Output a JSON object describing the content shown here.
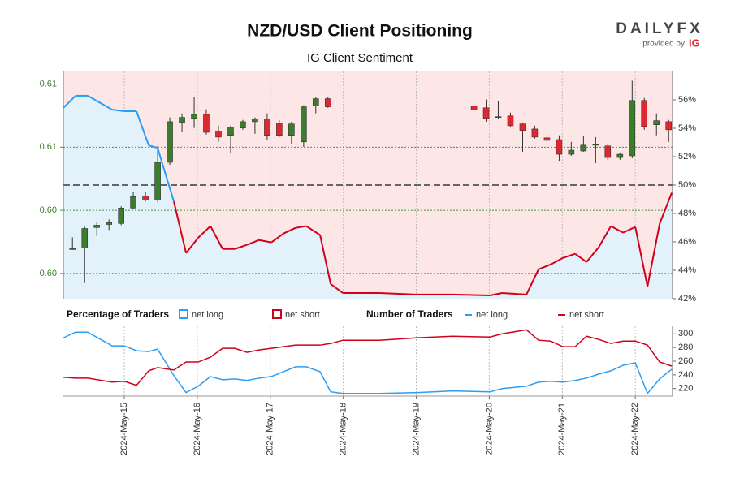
{
  "header": {
    "title": "NZD/USD Client Positioning",
    "subtitle": "IG Client Sentiment",
    "logo": "DAILYFX",
    "provided_by": "provided by",
    "provider": "IG"
  },
  "chart_data": [
    {
      "type": "candlestick",
      "up_color": "#3a7d2c",
      "down_color": "#e0262f",
      "x": [
        14.29,
        14.457,
        14.623,
        14.79,
        14.957,
        15.123,
        15.29,
        15.457,
        15.623,
        15.79,
        15.957,
        16.123,
        16.29,
        16.457,
        16.623,
        16.79,
        16.957,
        17.123,
        17.29,
        17.457,
        17.623,
        17.79,
        19.79,
        19.957,
        20.123,
        20.29,
        20.457,
        20.623,
        20.79,
        20.957,
        21.123,
        21.29,
        21.457,
        21.623,
        21.79,
        21.957,
        22.123,
        22.29,
        22.457
      ],
      "open": [
        0.60348,
        0.60351,
        0.60432,
        0.60444,
        0.60448,
        0.60509,
        0.60557,
        0.60541,
        0.6069,
        0.60848,
        0.60864,
        0.6088,
        0.60813,
        0.60797,
        0.60826,
        0.60851,
        0.60861,
        0.60845,
        0.60797,
        0.60771,
        0.60913,
        0.60942,
        0.60913,
        0.60906,
        0.60871,
        0.60874,
        0.60842,
        0.60822,
        0.60787,
        0.6078,
        0.60722,
        0.60735,
        0.60761,
        0.60755,
        0.60709,
        0.60716,
        0.60935,
        0.60839,
        0.60851
      ],
      "high": [
        0.60393,
        0.60435,
        0.60454,
        0.60464,
        0.60516,
        0.60574,
        0.60574,
        0.60755,
        0.60868,
        0.60884,
        0.60948,
        0.609,
        0.60835,
        0.60835,
        0.60858,
        0.60868,
        0.60884,
        0.60858,
        0.60851,
        0.60916,
        0.60948,
        0.60948,
        0.60926,
        0.60939,
        0.60932,
        0.60887,
        0.60848,
        0.60835,
        0.60793,
        0.60797,
        0.60771,
        0.60793,
        0.6079,
        0.60761,
        0.60729,
        0.61013,
        0.60945,
        0.60884,
        0.60858
      ],
      "low": [
        0.60344,
        0.60212,
        0.60399,
        0.60422,
        0.60441,
        0.60506,
        0.60535,
        0.60532,
        0.6068,
        0.60809,
        0.60826,
        0.608,
        0.60771,
        0.60725,
        0.60819,
        0.60803,
        0.60777,
        0.6079,
        0.60764,
        0.60751,
        0.60884,
        0.60906,
        0.60884,
        0.60851,
        0.60861,
        0.60829,
        0.60732,
        0.60784,
        0.60771,
        0.60696,
        0.60716,
        0.60732,
        0.60687,
        0.607,
        0.607,
        0.60706,
        0.60819,
        0.60797,
        0.60771
      ],
      "close": [
        0.60348,
        0.60428,
        0.60441,
        0.60451,
        0.60509,
        0.60554,
        0.60541,
        0.6069,
        0.60851,
        0.60868,
        0.6088,
        0.60809,
        0.6079,
        0.60829,
        0.60851,
        0.60861,
        0.60797,
        0.60797,
        0.60842,
        0.6091,
        0.60942,
        0.6091,
        0.60897,
        0.60864,
        0.60871,
        0.60835,
        0.60816,
        0.6079,
        0.60777,
        0.60722,
        0.60738,
        0.60758,
        0.60761,
        0.60709,
        0.60722,
        0.60935,
        0.60832,
        0.60855,
        0.60819
      ],
      "ylim": [
        0.6015,
        0.6105
      ],
      "yticks": [
        {
          "value": 0.61,
          "label": "0.61"
        },
        {
          "value": 0.6075,
          "label": "0.61"
        },
        {
          "value": 0.605,
          "label": "0.60"
        },
        {
          "value": 0.6025,
          "label": "0.60"
        }
      ],
      "grid": true
    },
    {
      "type": "sentiment",
      "legend_title": "Percentage of Traders",
      "legend": [
        {
          "name": "net long",
          "color": "#2a9df4"
        },
        {
          "name": "net short",
          "color": "#d0021b"
        }
      ],
      "x": [
        14.165,
        14.332,
        14.499,
        14.833,
        15.0,
        15.167,
        15.334,
        15.456,
        15.679,
        15.846,
        16.013,
        16.18,
        16.347,
        16.513,
        16.68,
        16.847,
        17.014,
        17.181,
        17.348,
        17.493,
        17.682,
        17.827,
        17.994,
        18.494,
        18.995,
        19.496,
        20.008,
        20.175,
        20.509,
        20.675,
        20.842,
        21.009,
        21.176,
        21.332,
        21.499,
        21.666,
        21.833,
        22.0,
        22.167,
        22.334,
        22.5
      ],
      "values": [
        55.43,
        56.29,
        56.29,
        55.31,
        55.2,
        55.2,
        52.79,
        52.62,
        48.83,
        45.21,
        46.3,
        47.11,
        45.5,
        45.5,
        45.79,
        46.13,
        45.96,
        46.59,
        46.99,
        47.11,
        46.48,
        43.03,
        42.4,
        42.4,
        42.29,
        42.29,
        42.23,
        42.4,
        42.29,
        44.07,
        44.41,
        44.87,
        45.16,
        44.58,
        45.62,
        47.11,
        46.65,
        47.05,
        42.86,
        47.28,
        49.46
      ],
      "axis": "y2",
      "reference_line": 50,
      "y2lim": [
        42,
        58
      ],
      "y2ticks": [
        {
          "value": 42,
          "label": "42%"
        },
        {
          "value": 44,
          "label": "44%"
        },
        {
          "value": 46,
          "label": "46%"
        },
        {
          "value": 48,
          "label": "48%"
        },
        {
          "value": 50,
          "label": "50%"
        },
        {
          "value": 52,
          "label": "52%"
        },
        {
          "value": 54,
          "label": "54%"
        },
        {
          "value": 56,
          "label": "56%"
        }
      ]
    },
    {
      "type": "line",
      "legend_title": "Number of Traders",
      "x": [
        14.165,
        14.332,
        14.499,
        14.833,
        15.0,
        15.167,
        15.334,
        15.456,
        15.679,
        15.846,
        16.013,
        16.18,
        16.347,
        16.513,
        16.68,
        16.847,
        17.014,
        17.181,
        17.348,
        17.493,
        17.682,
        17.827,
        17.994,
        18.494,
        18.995,
        19.496,
        20.008,
        20.175,
        20.509,
        20.675,
        20.842,
        21.009,
        21.176,
        21.332,
        21.499,
        21.666,
        21.833,
        22.0,
        22.167,
        22.334,
        22.5
      ],
      "series": [
        {
          "name": "net long",
          "color": "#2a9df4",
          "values": [
            294.1,
            302.4,
            302.4,
            282.4,
            282.4,
            275.3,
            274.1,
            277.6,
            238.8,
            214.1,
            223.5,
            237.6,
            232.9,
            234.1,
            231.8,
            235.3,
            237.6,
            244.7,
            251.8,
            251.8,
            244.7,
            215.3,
            212.9,
            212.9,
            214.1,
            216.5,
            215.3,
            220,
            223.5,
            229.4,
            230.6,
            229.4,
            231.8,
            235.3,
            241.2,
            245.9,
            254.1,
            257.6,
            212.9,
            234.1,
            248.2
          ]
        },
        {
          "name": "net short",
          "color": "#d0021b",
          "values": [
            236.5,
            235.3,
            235.3,
            229.4,
            230.6,
            224.7,
            245.9,
            250.6,
            247.1,
            258.8,
            258.8,
            265.9,
            278.8,
            278.8,
            272.9,
            276.5,
            278.8,
            281.2,
            283.5,
            283.5,
            283.5,
            285.9,
            290.6,
            290.6,
            294.1,
            296.5,
            295.3,
            300,
            305.9,
            290.6,
            289.4,
            281.2,
            281.2,
            296.5,
            291.8,
            285.9,
            289.4,
            289.4,
            283.5,
            258.8,
            252.9
          ]
        }
      ],
      "ylim": [
        209,
        311
      ],
      "yticks": [
        220,
        240,
        260,
        280,
        300
      ],
      "xlim": [
        14.165,
        22.51
      ],
      "xticks": [
        {
          "value": 15,
          "label": "2024-May-15"
        },
        {
          "value": 16,
          "label": "2024-May-16"
        },
        {
          "value": 17,
          "label": "2024-May-17"
        },
        {
          "value": 18,
          "label": "2024-May-18"
        },
        {
          "value": 19,
          "label": "2024-May-19"
        },
        {
          "value": 20,
          "label": "2024-May-20"
        },
        {
          "value": 21,
          "label": "2024-May-21"
        },
        {
          "value": 22,
          "label": "2024-May-22"
        }
      ]
    }
  ]
}
